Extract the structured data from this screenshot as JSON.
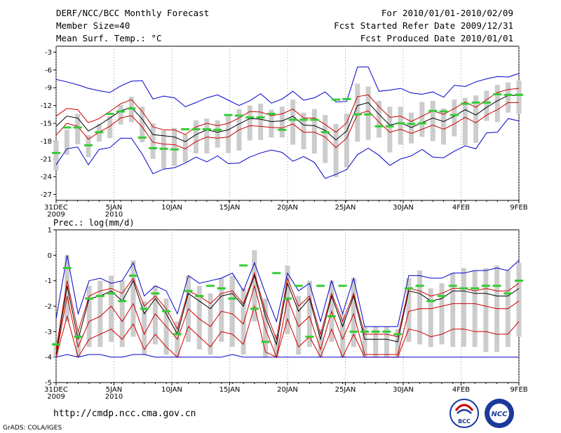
{
  "header": {
    "title": "DERF/NCC/BCC Monthly Forecast",
    "member_size": "Member Size=40",
    "variable": "Mean Surf. Temp.: °C",
    "for_range": "For 2010/01/01-2010/02/09",
    "fcst_started": "Fcst Started Refer Date 2009/12/31",
    "fcst_produced": "Fcst Produced Date 2010/01/01"
  },
  "footer": {
    "url": "http://cmdp.ncc.cma.gov.cn",
    "credit": "GrADS: COLA/IGES",
    "logo_bcc": "BCC",
    "logo_ncc": "NCC"
  },
  "colors": {
    "mean": "#000000",
    "inner": "#cc0000",
    "outer": "#0000cc",
    "box": "#cccccc",
    "obs": "#33cc33",
    "dots": "#999999"
  },
  "chart_data": [
    {
      "type": "line",
      "title": "Mean Surf. Temp.: °C",
      "ylim": [
        -28,
        -2
      ],
      "yticks": [
        -3,
        -6,
        -9,
        -12,
        -15,
        -18,
        -21,
        -24,
        -27
      ],
      "xlim": [
        0,
        40
      ],
      "xticks": [
        {
          "x": 0,
          "label": "31DEC",
          "sub": "2009"
        },
        {
          "x": 5,
          "label": "5JAN",
          "sub": "2010"
        },
        {
          "x": 10,
          "label": "10JAN",
          "sub": ""
        },
        {
          "x": 15,
          "label": "15JAN",
          "sub": ""
        },
        {
          "x": 20,
          "label": "20JAN",
          "sub": ""
        },
        {
          "x": 25,
          "label": "25JAN",
          "sub": ""
        },
        {
          "x": 30,
          "label": "30JAN",
          "sub": ""
        },
        {
          "x": 35,
          "label": "4FEB",
          "sub": ""
        },
        {
          "x": 40,
          "label": "9FEB",
          "sub": ""
        }
      ],
      "series": [
        {
          "name": "mean",
          "values": [
            -15.5,
            -13.8,
            -14.1,
            -16.3,
            -15.3,
            -14.1,
            -12.9,
            -12.3,
            -14.3,
            -16.9,
            -17.1,
            -17.3,
            -18.1,
            -16.9,
            -16.1,
            -16.5,
            -16.1,
            -15.1,
            -14.2,
            -14.3,
            -14.7,
            -14.6,
            -13.8,
            -15.3,
            -15.4,
            -16.2,
            -17.8,
            -16.3,
            -12.0,
            -11.5,
            -13.5,
            -15.3,
            -14.9,
            -15.7,
            -14.9,
            -14.1,
            -14.7,
            -13.8,
            -12.7,
            -13.6,
            -12.3,
            -11.2,
            -10.3,
            -10.3
          ]
        },
        {
          "name": "inner-upper",
          "values": [
            -13.8,
            -12.5,
            -12.7,
            -14.9,
            -14.2,
            -13.0,
            -11.7,
            -11.0,
            -13.0,
            -15.6,
            -16.1,
            -16.1,
            -16.9,
            -15.6,
            -15.0,
            -15.4,
            -15.0,
            -14.1,
            -13.0,
            -13.1,
            -13.7,
            -13.4,
            -12.6,
            -14.1,
            -14.1,
            -15.2,
            -16.5,
            -14.9,
            -10.5,
            -10.2,
            -12.2,
            -14.0,
            -13.8,
            -14.7,
            -13.8,
            -12.9,
            -13.5,
            -12.5,
            -11.4,
            -12.3,
            -11.0,
            -9.8,
            -9.3,
            -9.1
          ]
        },
        {
          "name": "inner-lower",
          "values": [
            -17.0,
            -15.0,
            -15.5,
            -17.7,
            -16.5,
            -15.5,
            -14.1,
            -13.7,
            -15.6,
            -18.2,
            -18.5,
            -18.6,
            -19.3,
            -18.1,
            -17.3,
            -17.5,
            -17.3,
            -16.1,
            -15.4,
            -15.5,
            -15.7,
            -15.8,
            -15.1,
            -16.5,
            -16.5,
            -17.3,
            -19.1,
            -17.5,
            -13.5,
            -12.9,
            -14.8,
            -16.5,
            -16.0,
            -16.7,
            -16.0,
            -15.3,
            -16.0,
            -15.1,
            -14.0,
            -14.9,
            -13.6,
            -12.7,
            -11.5,
            -11.5
          ]
        },
        {
          "name": "outer-upper",
          "values": [
            -7.6,
            -8.0,
            -8.5,
            -9.1,
            -9.5,
            -9.8,
            -8.7,
            -7.9,
            -7.8,
            -10.9,
            -10.4,
            -10.7,
            -12.2,
            -11.5,
            -10.7,
            -10.2,
            -11.1,
            -12.0,
            -11.2,
            -10.0,
            -11.6,
            -10.9,
            -9.6,
            -11.1,
            -10.7,
            -9.7,
            -11.4,
            -11.3,
            -5.5,
            -5.5,
            -9.6,
            -9.4,
            -9.1,
            -9.9,
            -10.1,
            -9.7,
            -10.6,
            -8.6,
            -8.8,
            -8.0,
            -7.5,
            -7.1,
            -7.2,
            -6.6
          ]
        },
        {
          "name": "outer-lower",
          "values": [
            -22.0,
            -19.3,
            -19.0,
            -22.0,
            -19.4,
            -19.1,
            -17.5,
            -17.5,
            -20.2,
            -23.5,
            -22.7,
            -22.5,
            -21.7,
            -20.7,
            -21.5,
            -20.5,
            -21.8,
            -21.7,
            -20.7,
            -20.0,
            -19.5,
            -19.9,
            -21.4,
            -20.6,
            -21.6,
            -24.3,
            -23.6,
            -22.8,
            -20.3,
            -19.2,
            -20.4,
            -22.1,
            -21.0,
            -20.5,
            -19.4,
            -20.7,
            -20.8,
            -19.7,
            -18.8,
            -19.3,
            -16.6,
            -16.5,
            -14.2,
            -14.6
          ]
        }
      ],
      "boxes_high": [
        -17.9,
        -16.1,
        -13.4,
        -17.0,
        -15.1,
        -13.8,
        -11.9,
        -10.5,
        -12.2,
        -15.0,
        -16.2,
        -15.8,
        -16.9,
        -14.5,
        -14.2,
        -14.5,
        -13.8,
        -12.6,
        -12.0,
        -11.7,
        -12.7,
        -12.2,
        -11.0,
        -13.2,
        -12.6,
        -13.6,
        -15.1,
        -13.4,
        -8.3,
        -8.8,
        -11.2,
        -12.2,
        -12.2,
        -13.2,
        -11.4,
        -11.2,
        -12.5,
        -11.0,
        -10.7,
        -10.3,
        -9.5,
        -8.5,
        -8.1,
        -7.8
      ],
      "boxes_low": [
        -22.9,
        -20.3,
        -18.5,
        -20.7,
        -18.1,
        -17.5,
        -15.2,
        -14.8,
        -18.2,
        -21.0,
        -22.6,
        -22.2,
        -21.6,
        -20.1,
        -20.1,
        -19.1,
        -20.0,
        -19.6,
        -17.9,
        -17.8,
        -17.4,
        -17.4,
        -18.6,
        -19.4,
        -20.1,
        -21.7,
        -24.1,
        -22.4,
        -18.1,
        -17.8,
        -17.4,
        -19.9,
        -18.6,
        -18.4,
        -17.3,
        -18.0,
        -18.6,
        -17.2,
        -18.7,
        -18.3,
        -14.6,
        -14.8,
        -13.2,
        -13.4
      ],
      "observed": [
        -20.0,
        -15.7,
        -15.7,
        -18.7,
        -16.5,
        -13.4,
        -13.0,
        -12.5,
        -17.4,
        -19.2,
        -19.3,
        -19.4,
        -16.0,
        -16.0,
        -16.0,
        -16.1,
        -13.6,
        -13.7,
        -14.0,
        -14.0,
        -13.4,
        -16.1,
        -14.4,
        -14.4,
        -14.4,
        -16.5,
        -11.0,
        -10.9,
        -13.5,
        -13.5,
        -15.5,
        -15.5,
        -15.0,
        -15.1,
        -15.0,
        -12.9,
        -13.0,
        -13.6,
        -11.7,
        -11.5,
        -11.5,
        -10.1,
        -10.2,
        -10.2
      ]
    },
    {
      "type": "line",
      "title": "Prec.: log(mm/d)",
      "ylim": [
        -5,
        1
      ],
      "yticks": [
        1,
        0,
        -1,
        -2,
        -3,
        -4,
        -5
      ],
      "xlim": [
        0,
        40
      ],
      "xticks": [
        {
          "x": 0,
          "label": "31DEC",
          "sub": "2009"
        },
        {
          "x": 5,
          "label": "5JAN",
          "sub": "2010"
        },
        {
          "x": 10,
          "label": "10JAN",
          "sub": ""
        },
        {
          "x": 15,
          "label": "15JAN",
          "sub": ""
        },
        {
          "x": 20,
          "label": "20JAN",
          "sub": ""
        },
        {
          "x": 25,
          "label": "25JAN",
          "sub": ""
        },
        {
          "x": 30,
          "label": "30JAN",
          "sub": ""
        },
        {
          "x": 35,
          "label": "4FEB",
          "sub": ""
        },
        {
          "x": 40,
          "label": "9FEB",
          "sub": ""
        }
      ],
      "series": [
        {
          "name": "mean",
          "values": [
            -3.9,
            -1.2,
            -3.3,
            -1.7,
            -1.6,
            -1.4,
            -1.8,
            -1.0,
            -2.3,
            -1.7,
            -2.3,
            -3.1,
            -1.5,
            -1.8,
            -2.1,
            -1.6,
            -1.5,
            -2.0,
            -0.8,
            -2.4,
            -3.5,
            -1.1,
            -2.2,
            -1.7,
            -3.3,
            -1.6,
            -2.8,
            -1.6,
            -3.3,
            -3.3,
            -3.3,
            -3.4,
            -1.4,
            -1.5,
            -1.8,
            -1.7,
            -1.4,
            -1.4,
            -1.5,
            -1.5,
            -1.6,
            -1.6,
            -1.3
          ]
        },
        {
          "name": "inner-upper",
          "values": [
            -3.7,
            -1.0,
            -3.0,
            -1.6,
            -1.4,
            -1.3,
            -1.5,
            -0.9,
            -2.0,
            -1.6,
            -2.1,
            -2.9,
            -1.4,
            -1.6,
            -1.9,
            -1.5,
            -1.4,
            -1.9,
            -0.7,
            -2.2,
            -3.3,
            -0.9,
            -2.0,
            -1.6,
            -3.1,
            -1.5,
            -2.6,
            -1.5,
            -3.1,
            -3.1,
            -3.1,
            -3.2,
            -1.3,
            -1.4,
            -1.6,
            -1.5,
            -1.3,
            -1.3,
            -1.4,
            -1.3,
            -1.4,
            -1.4,
            -1.1
          ]
        },
        {
          "name": "inner-lower",
          "values": [
            -4.0,
            -1.6,
            -3.6,
            -2.6,
            -2.4,
            -2.0,
            -2.6,
            -1.9,
            -3.1,
            -2.3,
            -2.8,
            -3.3,
            -2.1,
            -2.5,
            -2.8,
            -2.2,
            -2.3,
            -2.7,
            -1.2,
            -2.9,
            -4.0,
            -1.7,
            -2.8,
            -2.4,
            -3.7,
            -2.2,
            -3.3,
            -2.3,
            -3.9,
            -3.9,
            -3.9,
            -3.9,
            -2.2,
            -2.1,
            -2.1,
            -2.0,
            -1.9,
            -1.9,
            -1.9,
            -2.0,
            -2.1,
            -2.1,
            -1.8
          ]
        },
        {
          "name": "red-lower",
          "values": [
            -4.0,
            -2.4,
            -4.0,
            -3.3,
            -3.1,
            -2.9,
            -3.3,
            -2.7,
            -3.7,
            -3.1,
            -3.6,
            -4.0,
            -2.8,
            -3.2,
            -3.6,
            -3.0,
            -3.1,
            -3.5,
            -2.0,
            -3.8,
            -4.0,
            -2.5,
            -3.6,
            -3.2,
            -4.0,
            -2.9,
            -4.0,
            -3.1,
            -4.0,
            -4.0,
            -4.0,
            -4.0,
            -2.9,
            -3.0,
            -3.2,
            -3.1,
            -2.9,
            -2.9,
            -3.0,
            -3.0,
            -3.1,
            -3.1,
            -2.6
          ]
        },
        {
          "name": "outer-upper",
          "values": [
            -2.5,
            0.0,
            -2.3,
            -1.0,
            -0.9,
            -1.1,
            -1.0,
            -0.3,
            -1.6,
            -1.2,
            -1.4,
            -2.3,
            -0.8,
            -1.1,
            -1.0,
            -0.9,
            -0.7,
            -1.4,
            -0.3,
            -1.5,
            -2.6,
            -0.7,
            -1.4,
            -1.1,
            -2.6,
            -1.0,
            -2.3,
            -0.9,
            -2.8,
            -2.8,
            -2.8,
            -2.8,
            -0.8,
            -0.8,
            -0.9,
            -0.9,
            -0.7,
            -0.7,
            -0.6,
            -0.6,
            -0.5,
            -0.6,
            -0.2
          ]
        },
        {
          "name": "outer-lower",
          "values": [
            -4.0,
            -3.9,
            -4.0,
            -3.9,
            -3.9,
            -4.0,
            -4.0,
            -3.9,
            -3.9,
            -4.0,
            -4.0,
            -4.0,
            -4.0,
            -4.0,
            -4.0,
            -4.0,
            -3.9,
            -4.0,
            -4.0,
            -4.0,
            -4.0,
            -4.0,
            -4.0,
            -4.0,
            -4.0,
            -4.0,
            -4.0,
            -4.0,
            -4.0,
            -4.0,
            -4.0,
            -4.0,
            -4.0,
            -4.0,
            -4.0,
            -4.0,
            -4.0,
            -4.0,
            -4.0,
            -4.0,
            -4.0,
            -4.0,
            -4.0
          ]
        }
      ],
      "boxes_high": [
        -3.4,
        0.0,
        -3.0,
        -1.2,
        -1.0,
        -0.8,
        -1.0,
        -0.2,
        -1.8,
        -1.2,
        -1.7,
        -2.6,
        -0.8,
        -1.2,
        -1.5,
        -0.9,
        -0.8,
        -1.3,
        0.2,
        -1.7,
        -3.1,
        -0.4,
        -1.6,
        -1.0,
        -2.9,
        -1.0,
        -2.3,
        -0.9,
        -2.8,
        -2.8,
        -2.8,
        -2.9,
        -0.9,
        -0.6,
        -1.3,
        -1.1,
        -0.7,
        -0.5,
        -0.6,
        -0.5,
        -0.4,
        -0.6,
        -0.3
      ],
      "boxes_low": [
        -4.0,
        -2.6,
        -4.0,
        -3.6,
        -3.6,
        -3.4,
        -3.6,
        -3.2,
        -3.9,
        -3.5,
        -3.9,
        -4.0,
        -3.4,
        -3.7,
        -3.9,
        -3.4,
        -3.6,
        -3.9,
        -2.6,
        -4.0,
        -4.0,
        -3.1,
        -3.9,
        -3.6,
        -4.0,
        -3.4,
        -4.0,
        -3.6,
        -4.0,
        -4.0,
        -4.0,
        -4.0,
        -3.4,
        -3.5,
        -3.6,
        -3.5,
        -3.6,
        -3.6,
        -3.6,
        -3.8,
        -3.8,
        -3.6,
        -3.2
      ],
      "observed": [
        -3.5,
        -0.5,
        -3.2,
        -1.7,
        -1.6,
        -1.5,
        -1.8,
        -0.8,
        -2.1,
        -1.5,
        -2.2,
        -3.1,
        -1.4,
        -1.6,
        -1.2,
        -1.3,
        -1.7,
        -0.4,
        -2.1,
        -3.4,
        -0.7,
        -1.7,
        -1.2,
        -3.2,
        -1.2,
        -2.4,
        -1.2,
        -3.0,
        -3.0,
        -3.0,
        -3.0,
        -3.1,
        -1.3,
        -1.2,
        -1.8,
        -1.6,
        -1.2,
        -1.3,
        -1.3,
        -1.2,
        -1.2,
        -1.5,
        -1.0
      ]
    }
  ]
}
